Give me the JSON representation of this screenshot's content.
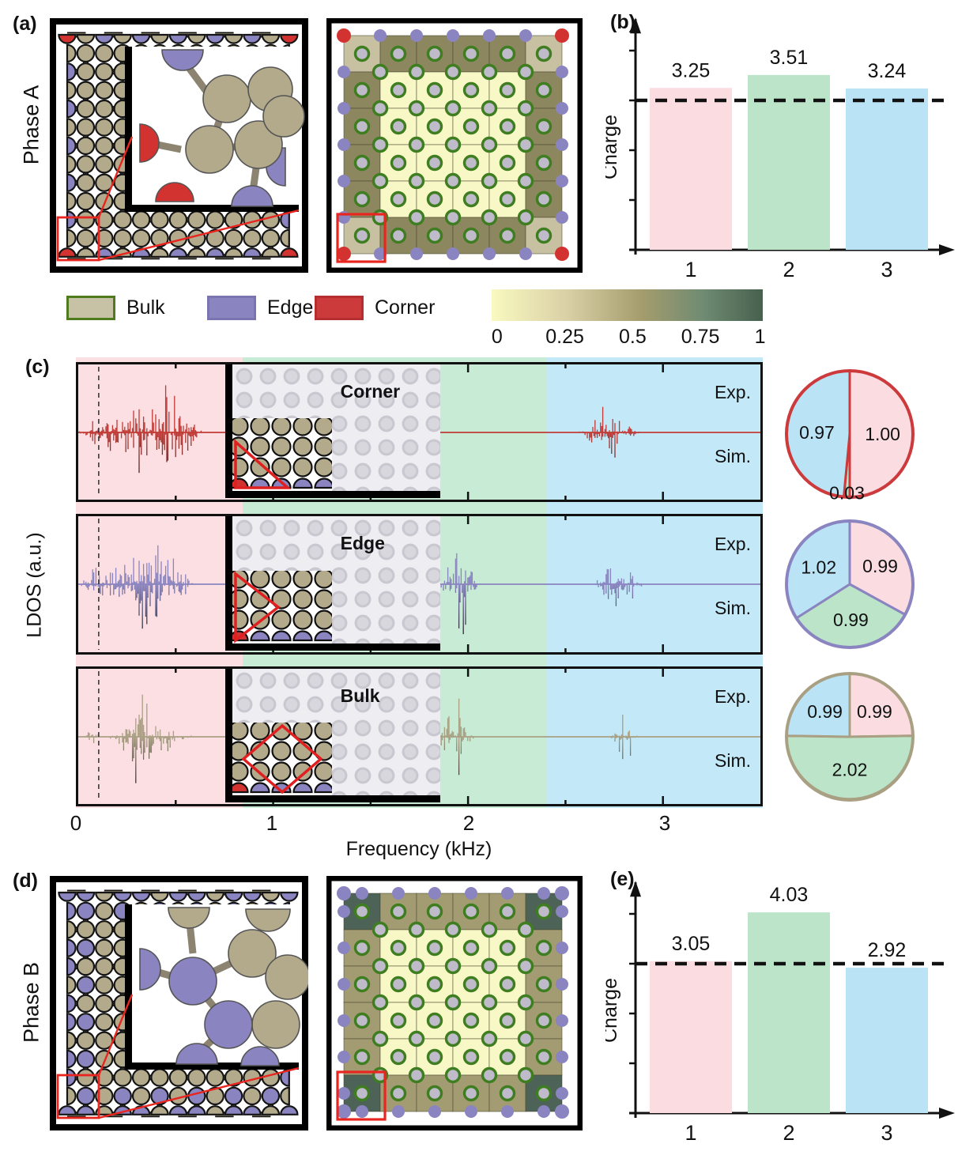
{
  "figure": {
    "panel_a": {
      "label": "(a)",
      "side_label": "Phase A"
    },
    "panel_b": {
      "label": "(b)"
    },
    "panel_c": {
      "label": "(c)"
    },
    "panel_d": {
      "label": "(d)",
      "side_label": "Phase B"
    },
    "panel_e": {
      "label": "(e)"
    }
  },
  "colors": {
    "pink": "#fadce1",
    "green": "#bbe4c9",
    "blue": "#bae4f5",
    "band_pink": "#fbdfe2",
    "band_green": "#c8ebd5",
    "band_blue": "#c3e8f7",
    "spec_red": "#c13a35",
    "spec_purple": "#8a84c0",
    "spec_tan": "#a9a083",
    "sim_dark": "#1c1c1c",
    "lattice_tan": "#b3aa8c",
    "dot_purple": "#8a84c0",
    "dot_red": "#d23330",
    "ring_green": "#3e7d20",
    "ring_fill": "#c0bbca"
  },
  "legend": {
    "items": [
      {
        "label": "Bulk",
        "fill": "#c7c2a6",
        "border": "#4e7b1d"
      },
      {
        "label": "Edge",
        "fill": "#8a84c0",
        "border": "#7a74b0"
      },
      {
        "label": "Corner",
        "fill": "#cc3a3c",
        "border": "#b52f31"
      }
    ]
  },
  "colorbar": {
    "ticks": [
      "0",
      "0.25",
      "0.5",
      "0.75",
      "1"
    ],
    "gradient": [
      "#f9f9c0",
      "#d9d0a6",
      "#a59d6d",
      "#6f8b72",
      "#47604e"
    ]
  },
  "charge_maps": {
    "phase_a": {
      "grid": 6,
      "interior_cell": "#f8f8c6",
      "edge_cell": "#8d8760",
      "corner_cell": "#c7c1a1",
      "corner_dot": "#d23330",
      "edge_dot": "#8a84c0",
      "highlight": "red square on bottom-left corner cell"
    },
    "phase_b": {
      "grid": 6,
      "interior_cell": "#f8f8c6",
      "edge_cell": "#a39c72",
      "corner_cell": "#4e6357",
      "corner_dot": "#8a84c0",
      "edge_dot": "#8a84c0",
      "highlight": "red square on bottom-left corner cell"
    }
  },
  "chart_data": [
    {
      "id": "b",
      "type": "bar",
      "ylabel": "Charge",
      "categories": [
        "1",
        "2",
        "3"
      ],
      "values": [
        3.25,
        3.51,
        3.24
      ],
      "labels": [
        "3.25",
        "3.51",
        "3.24"
      ],
      "dashed_line": 3.0,
      "ylim": [
        0,
        4.6
      ],
      "bar_colors": [
        "#fadce1",
        "#bbe4c9",
        "#bae4f5"
      ]
    },
    {
      "id": "c",
      "type": "area-spectra",
      "ylabel": "LDOS (a.u.)",
      "xlabel": "Frequency (kHz)",
      "xlim": [
        0,
        3.5
      ],
      "xticks": [
        "0",
        "1",
        "2",
        "3"
      ],
      "dashed_vline": 0.105,
      "bands": [
        {
          "range": [
            0,
            0.85
          ],
          "color": "#fbdfe2"
        },
        {
          "range": [
            0.85,
            2.4
          ],
          "color": "#c8ebd5"
        },
        {
          "range": [
            2.4,
            3.5
          ],
          "color": "#c3e8f7"
        }
      ],
      "rows": [
        {
          "name": "Corner",
          "exp_label": "Exp.",
          "sim_label": "Sim.",
          "color": "#c13a35",
          "highlight_shape": "corner-triangle",
          "clusters": [
            {
              "center": 0.07,
              "width": 0.05,
              "amp": 0.25
            },
            {
              "center": 0.17,
              "width": 0.04,
              "amp": 0.45
            },
            {
              "center": 0.33,
              "width": 0.1,
              "amp": 0.97
            },
            {
              "center": 0.47,
              "width": 0.07,
              "amp": 0.6
            },
            {
              "center": 0.57,
              "width": 0.04,
              "amp": 0.35
            },
            {
              "center": 2.73,
              "width": 0.09,
              "amp": 0.52
            }
          ],
          "pie": {
            "border": "#cc3a3c",
            "slices": [
              {
                "label": "1.00",
                "value": 1.0,
                "color": "#fadce1"
              },
              {
                "label": "0.03",
                "value": 0.03,
                "color": "#bbe4c9"
              },
              {
                "label": "0.97",
                "value": 0.97,
                "color": "#bae4f5"
              }
            ]
          }
        },
        {
          "name": "Edge",
          "exp_label": "Exp.",
          "sim_label": "Sim.",
          "color": "#8a84c0",
          "highlight_shape": "edge-triangle",
          "clusters": [
            {
              "center": 0.07,
              "width": 0.04,
              "amp": 0.3
            },
            {
              "center": 0.17,
              "width": 0.05,
              "amp": 0.5
            },
            {
              "center": 0.36,
              "width": 0.11,
              "amp": 1.0
            },
            {
              "center": 0.5,
              "width": 0.05,
              "amp": 0.5
            },
            {
              "center": 1.62,
              "width": 0.1,
              "amp": 0.06
            },
            {
              "center": 1.95,
              "width": 0.06,
              "amp": 0.95
            },
            {
              "center": 2.77,
              "width": 0.07,
              "amp": 0.7
            }
          ],
          "pie": {
            "border": "#8a84c0",
            "slices": [
              {
                "label": "0.99",
                "value": 0.99,
                "color": "#fadce1"
              },
              {
                "label": "0.99",
                "value": 0.99,
                "color": "#bbe4c9"
              },
              {
                "label": "1.02",
                "value": 1.02,
                "color": "#bae4f5"
              }
            ]
          }
        },
        {
          "name": "Bulk",
          "exp_label": "Exp.",
          "sim_label": "Sim.",
          "color": "#a9a083",
          "highlight_shape": "bulk-diamond",
          "clusters": [
            {
              "center": 0.07,
              "width": 0.03,
              "amp": 0.15
            },
            {
              "center": 0.33,
              "width": 0.09,
              "amp": 0.85
            },
            {
              "center": 0.5,
              "width": 0.05,
              "amp": 0.3
            },
            {
              "center": 1.93,
              "width": 0.06,
              "amp": 0.8
            },
            {
              "center": 2.8,
              "width": 0.04,
              "amp": 0.6
            }
          ],
          "pie": {
            "border": "#a9a083",
            "slices": [
              {
                "label": "0.99",
                "value": 0.99,
                "color": "#fadce1"
              },
              {
                "label": "2.02",
                "value": 2.02,
                "color": "#bbe4c9"
              },
              {
                "label": "0.99",
                "value": 0.99,
                "color": "#bae4f5"
              }
            ]
          }
        }
      ]
    },
    {
      "id": "e",
      "type": "bar",
      "ylabel": "Charge",
      "categories": [
        "1",
        "2",
        "3"
      ],
      "values": [
        3.05,
        4.03,
        2.92
      ],
      "labels": [
        "3.05",
        "4.03",
        "2.92"
      ],
      "dashed_line": 3.0,
      "ylim": [
        0,
        4.6
      ],
      "bar_colors": [
        "#fadce1",
        "#bbe4c9",
        "#bae4f5"
      ]
    }
  ]
}
